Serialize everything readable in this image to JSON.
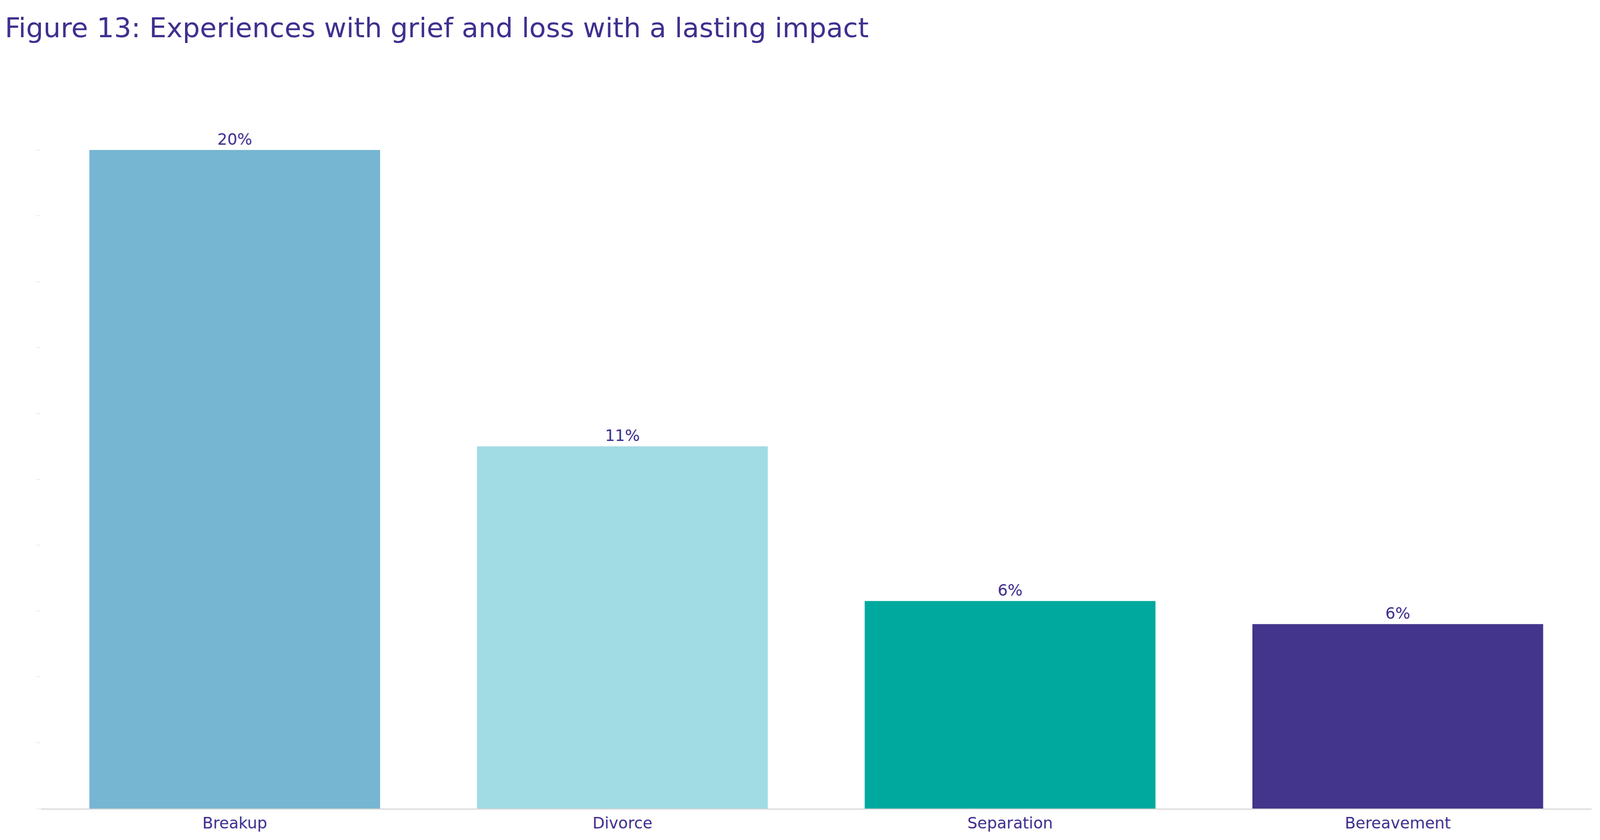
{
  "chart_data": {
    "type": "bar",
    "title": "Figure 13: Experiences with grief and loss with a lasting impact",
    "categories": [
      "Breakup",
      "Divorce",
      "Separation",
      "Bereavement"
    ],
    "values": [
      20,
      11,
      6.3,
      5.6
    ],
    "value_labels": [
      "20%",
      "11%",
      "6%",
      "6%"
    ],
    "colors": [
      "#76b6d2",
      "#a1dbe4",
      "#00a99d",
      "#43348c"
    ],
    "ylim": [
      0,
      20
    ],
    "yticks": [
      0,
      2,
      4,
      6,
      8,
      10,
      12,
      14,
      16,
      18,
      20
    ],
    "grid": false,
    "data_labels": true,
    "tick_labels": "x"
  }
}
